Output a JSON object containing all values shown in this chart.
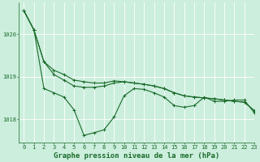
{
  "background_color": "#cceedd",
  "grid_color": "#ffffff",
  "line_color": "#1a6b2a",
  "xlabel": "Graphe pression niveau de la mer (hPa)",
  "xlabel_fontsize": 6.5,
  "tick_fontsize": 5,
  "xlim": [
    -0.5,
    23
  ],
  "ylim": [
    1017.45,
    1020.75
  ],
  "yticks": [
    1018,
    1019,
    1020
  ],
  "xticks": [
    0,
    1,
    2,
    3,
    4,
    5,
    6,
    7,
    8,
    9,
    10,
    11,
    12,
    13,
    14,
    15,
    16,
    17,
    18,
    19,
    20,
    21,
    22,
    23
  ],
  "series1": [
    1020.55,
    1020.1,
    1019.35,
    1019.15,
    1019.05,
    1018.92,
    1018.88,
    1018.85,
    1018.85,
    1018.9,
    1018.88,
    1018.85,
    1018.82,
    1018.78,
    1018.72,
    1018.62,
    1018.55,
    1018.52,
    1018.5,
    1018.48,
    1018.45,
    1018.42,
    1018.4,
    1018.2
  ],
  "series2": [
    1020.55,
    1020.1,
    1019.35,
    1019.05,
    1018.92,
    1018.78,
    1018.75,
    1018.75,
    1018.78,
    1018.85,
    1018.88,
    1018.85,
    1018.82,
    1018.78,
    1018.72,
    1018.62,
    1018.55,
    1018.52,
    1018.5,
    1018.48,
    1018.45,
    1018.42,
    1018.4,
    1018.2
  ],
  "series3": [
    1020.55,
    1020.1,
    1018.72,
    1018.62,
    1018.52,
    1018.22,
    1017.62,
    1017.68,
    1017.75,
    1018.05,
    1018.55,
    1018.72,
    1018.7,
    1018.62,
    1018.52,
    1018.32,
    1018.28,
    1018.32,
    1018.52,
    1018.42,
    1018.42,
    1018.45,
    1018.45,
    1018.15
  ]
}
